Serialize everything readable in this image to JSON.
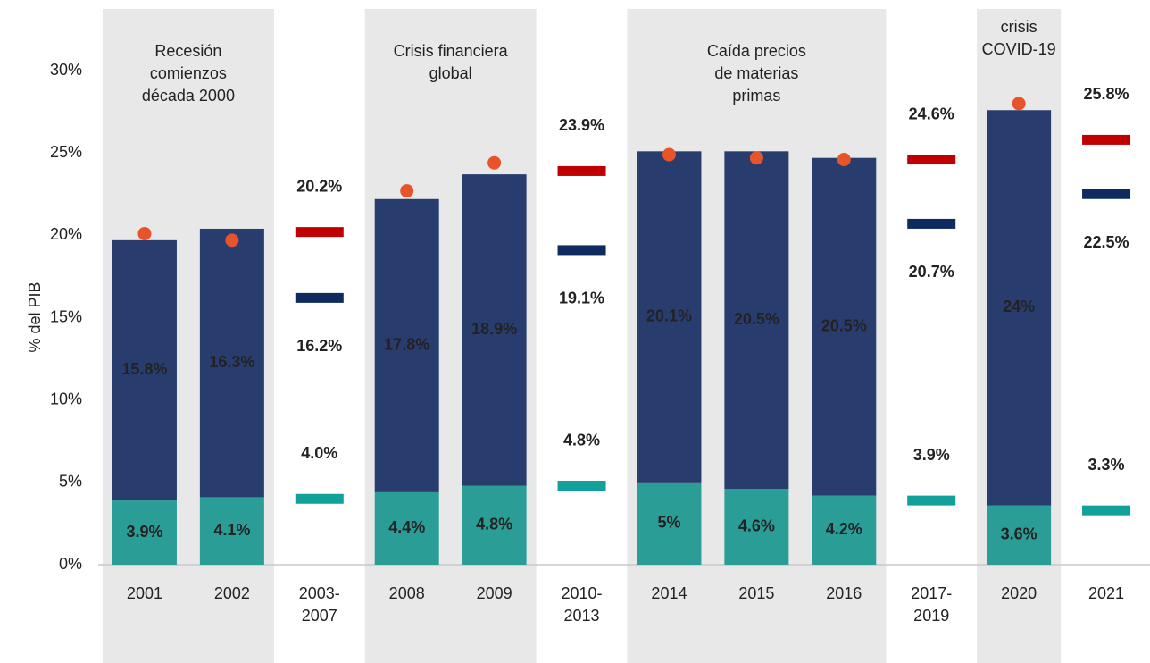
{
  "chart_data": {
    "type": "bar",
    "y_label": "% del PIB",
    "categories": [
      "2001",
      "2002",
      "2003-\n2007",
      "2008",
      "2009",
      "2010-\n2013",
      "2014",
      "2015",
      "2016",
      "2017-\n2019",
      "2020",
      "2021"
    ],
    "ylim": [
      0,
      32
    ],
    "yticks": [
      {
        "value": 0,
        "label": "0%"
      },
      {
        "value": 5,
        "label": "5%"
      },
      {
        "value": 10,
        "label": "10%"
      },
      {
        "value": 15,
        "label": "15%"
      },
      {
        "value": 20,
        "label": "20%"
      },
      {
        "value": 25,
        "label": "25%"
      },
      {
        "value": 30,
        "label": "30%"
      }
    ],
    "shaded_regions": [
      {
        "start": "2001",
        "end": "2002",
        "label": "Recesión\ncomienzos\ndécada 2000",
        "color": "#e8e8e8"
      },
      {
        "start": "2008",
        "end": "2009",
        "label": "Crisis financiera\nglobal",
        "color": "#e8e8e8"
      },
      {
        "start": "2014",
        "end": "2016",
        "label": "Caída precios\nde materias\nprimas",
        "color": "#e8e8e8"
      },
      {
        "start": "2020",
        "end": "2020",
        "label": "crisis\nCOVID-19",
        "color": "#e8e8e8"
      }
    ],
    "series": [
      {
        "style": "stack",
        "color": "#2a9d96",
        "values": [
          3.9,
          4.1,
          null,
          4.4,
          4.8,
          null,
          5,
          4.6,
          4.2,
          null,
          3.6,
          null
        ],
        "value_labels": [
          "3.9%",
          "4.1%",
          null,
          "4.4%",
          "4.8%",
          null,
          "5%",
          "4.6%",
          "4.2%",
          null,
          "3.6%",
          null
        ]
      },
      {
        "style": "stack",
        "color": "#283d6e",
        "values": [
          15.8,
          16.3,
          null,
          17.8,
          18.9,
          null,
          20.1,
          20.5,
          20.5,
          null,
          24,
          null
        ],
        "value_labels": [
          "15.8%",
          "16.3%",
          null,
          "17.8%",
          "18.9%",
          null,
          "20.1%",
          "20.5%",
          "20.5%",
          null,
          "24%",
          null
        ]
      },
      {
        "style": "dot",
        "color": "#e8542a",
        "values": [
          20.1,
          19.7,
          null,
          22.7,
          24.4,
          null,
          24.9,
          24.7,
          24.6,
          null,
          28.0,
          null
        ]
      },
      {
        "style": "dash",
        "color": "#12a09b",
        "label_position": "above",
        "values": [
          null,
          null,
          4.0,
          null,
          null,
          4.8,
          null,
          null,
          null,
          3.9,
          null,
          3.3
        ],
        "value_labels": [
          null,
          null,
          "4.0%",
          null,
          null,
          "4.8%",
          null,
          null,
          null,
          "3.9%",
          null,
          "3.3%"
        ]
      },
      {
        "style": "dash",
        "color": "#0f2a5f",
        "label_position": "below",
        "values": [
          null,
          null,
          16.2,
          null,
          null,
          19.1,
          null,
          null,
          null,
          20.7,
          null,
          22.5
        ],
        "value_labels": [
          null,
          null,
          "16.2%",
          null,
          null,
          "19.1%",
          null,
          null,
          null,
          "20.7%",
          null,
          "22.5%"
        ]
      },
      {
        "style": "dash",
        "color": "#c00000",
        "label_position": "above",
        "values": [
          null,
          null,
          20.2,
          null,
          null,
          23.9,
          null,
          null,
          null,
          24.6,
          null,
          25.8
        ],
        "value_labels": [
          null,
          null,
          "20.2%",
          null,
          null,
          "23.9%",
          null,
          null,
          null,
          "24.6%",
          null,
          "25.8%"
        ]
      }
    ]
  }
}
